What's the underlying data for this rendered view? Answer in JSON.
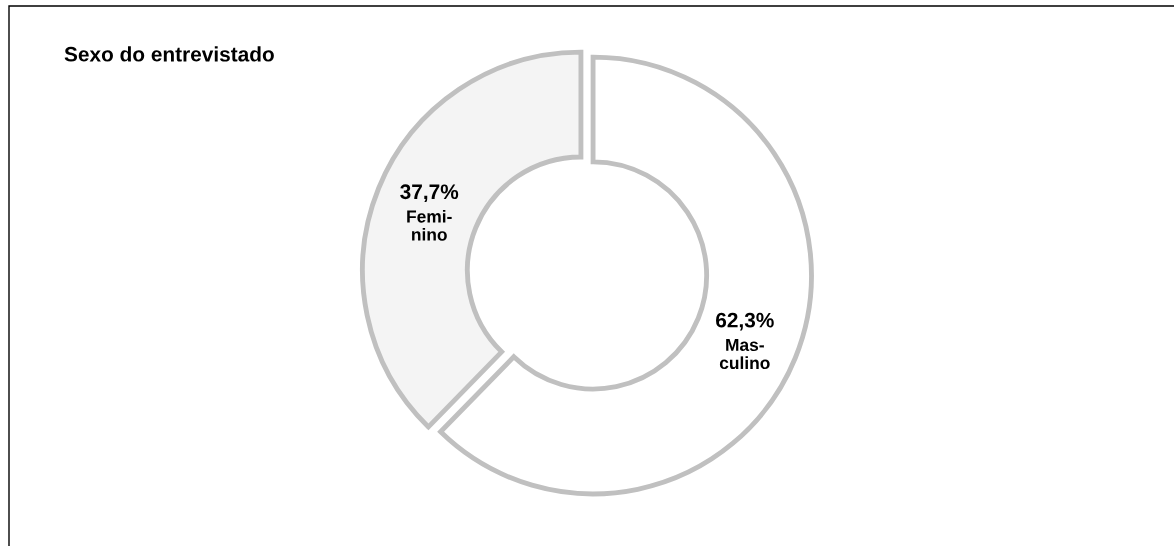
{
  "chart_data": {
    "type": "donut",
    "title": "Sexo do entrevistado",
    "categories": [
      "Mas-\nculino",
      "Femi-\nnino"
    ],
    "values": [
      62.3,
      37.7
    ],
    "colors": [
      "#ffffff",
      "#f4f4f4"
    ],
    "value_labels": [
      "62,3%",
      "37,7%"
    ],
    "legend": false
  }
}
